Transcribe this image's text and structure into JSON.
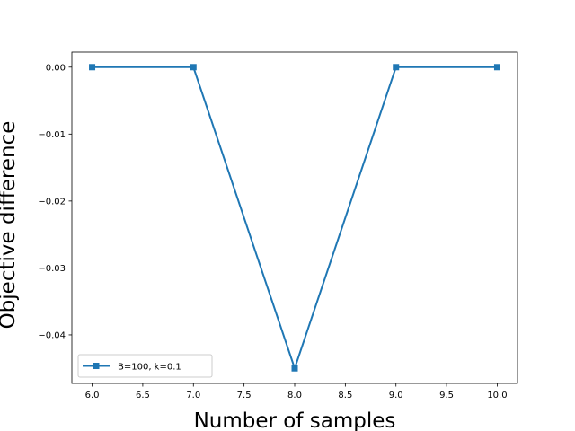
{
  "chart_data": {
    "type": "line",
    "title": "",
    "xlabel": "Number of samples",
    "ylabel": "Objective difference",
    "xlim": [
      5.8,
      10.2
    ],
    "ylim": [
      -0.04725,
      0.00225
    ],
    "xticks": [
      6.0,
      6.5,
      7.0,
      7.5,
      8.0,
      8.5,
      9.0,
      9.5,
      10.0
    ],
    "xtick_labels": [
      "6.0",
      "6.5",
      "7.0",
      "7.5",
      "8.0",
      "8.5",
      "9.0",
      "9.5",
      "10.0"
    ],
    "yticks": [
      0.0,
      -0.01,
      -0.02,
      -0.03,
      -0.04
    ],
    "ytick_labels": [
      "0.00",
      "−0.01",
      "−0.02",
      "−0.03",
      "−0.04"
    ],
    "grid": false,
    "legend_position": "lower-left",
    "series": [
      {
        "name": "B=100, k=0.1",
        "marker": "square",
        "color": "#1f77b4",
        "x": [
          6,
          7,
          8,
          9,
          10
        ],
        "values": [
          0.0,
          0.0,
          -0.045,
          0.0,
          0.0
        ]
      }
    ]
  }
}
